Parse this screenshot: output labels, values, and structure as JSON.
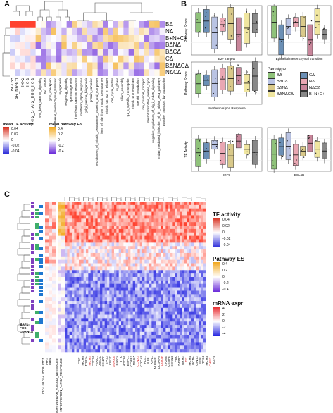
{
  "panels": {
    "a": "A",
    "b": "B",
    "c": "C"
  },
  "panelA": {
    "tf_rows": [
      "BCL6B",
      "AR_NR3C1",
      "IRF2",
      "IRF9",
      "IRF2_STAT2_IRF8_IRF9"
    ],
    "genotype_rows": [
      "BΔ",
      "NΔ",
      "B+N+C+",
      "BΔNΔ",
      "BΔCΔ",
      "CΔ",
      "BΔNΔCΔ",
      "NΔCΔ"
    ],
    "pathways": [
      "wnt_beta_catenin_signaling",
      "e2f_targets",
      "g2m_checkpoint",
      "epithelial_mesenchymal_transition",
      "myogenesis",
      "hedgehog_signaling",
      "spermatogenesis",
      "interferon_gamma_response",
      "interferon_alpha_response",
      "golgi_vesicle_biogenesis",
      "protein_secretion",
      "recruitment_of_mitotic_centrosome_proteins_and_complexes",
      "loss_of_nlp_from_mitotic_centrosomes",
      "mitotic_g2_g2_m_phases",
      "cell_cycle_mitotic",
      "m_phase",
      "cilium_assembly",
      "g1_s_specific_transcription",
      "mitotic_prometaphase",
      "steroid_metabolism",
      "ion_channel_transport",
      "neurotransmitter_release_cycle",
      "negative_regulators_of_rig_i_mda5_signaling",
      "mda5_mediated_induction_of_ifn_alpha_beta_pathways",
      "passive_transport_by_aquaporins"
    ],
    "legend_tf": {
      "title": "mean TF activity",
      "ticks": [
        "0.04",
        "0.02",
        "0",
        "-0.02",
        "-0.04"
      ]
    },
    "legend_es": {
      "title": "mean pathway ES",
      "ticks": [
        "0.4",
        "0.2",
        "0",
        "-0.2",
        "-0.4"
      ]
    }
  },
  "panelB": {
    "plots": [
      {
        "ylabel": "Pathway Score",
        "title": "E2F Targets"
      },
      {
        "ylabel": "",
        "title": "Epithelial mesenchymal transition"
      },
      {
        "ylabel": "Pathway Score",
        "title": "Interferon Alpha Response"
      },
      {
        "ylabel": "TF Activity",
        "title": "IRF9"
      },
      {
        "ylabel": "",
        "title": "BCL6B"
      }
    ],
    "legend_title": "Genotype",
    "legend": [
      {
        "label": "BΔ",
        "color": "#8fc27a"
      },
      {
        "label": "CΔ",
        "color": "#6b8fb5"
      },
      {
        "label": "BΔCΔ",
        "color": "#b9c3e3"
      },
      {
        "label": "NΔ",
        "color": "#e9a7b3"
      },
      {
        "label": "BΔNΔ",
        "color": "#d9c98a"
      },
      {
        "label": "NΔCΔ",
        "color": "#c8859a"
      },
      {
        "label": "BΔNΔCΔ",
        "color": "#f0e6a0"
      },
      {
        "label": "B+N+C+",
        "color": "#888888"
      }
    ]
  },
  "panelC": {
    "left_rows": [
      "BAF1",
      "FOS",
      "CDKN1A"
    ],
    "bottom_left": [
      "IRF2_STAT2_IRF8_IRF9",
      "IRF2",
      "IRF9"
    ],
    "bottom_mid": [
      "INTERFERON_GAMMA_RESPONSE",
      "INTERFERON_ALPHA_RESPONSE"
    ],
    "genes": [
      "CDK1",
      "MCM5",
      "TOP2A",
      "MCM2",
      "CDC20",
      "PSRC1",
      "UBE2C",
      "CENPF",
      "TPX2",
      "KIF2C",
      "AURKA",
      "BIRC5",
      "TTK",
      "NDC80",
      "ESPL1",
      "CCNB2",
      "MKI67",
      "CCNA2",
      "CDCA8",
      "PLK1",
      "BUB1",
      "KIF11",
      "NUSAP1",
      "DLGAP5",
      "HMMR",
      "KIF20A",
      "CENPE",
      "CDKN3",
      "PBK",
      "ZWINT",
      "RRM2",
      "TK1",
      "MCM4",
      "PCNA",
      "GINS2",
      "FEN1",
      "RFC4",
      "MCM3",
      "CHEK1",
      "E2F8"
    ],
    "gene_label_colors": [
      "#222",
      "#d33"
    ],
    "legend_tf": {
      "title": "TF activity",
      "ticks": [
        "0.04",
        "0.02",
        "0",
        "-0.02",
        "-0.04"
      ]
    },
    "legend_es": {
      "title": "Pathway ES",
      "ticks": [
        "0.4",
        "0.2",
        "0",
        "-0.2",
        "-0.4"
      ]
    },
    "legend_mrna": {
      "title": "mRNA expr",
      "ticks": [
        "4",
        "2",
        "0",
        "-2",
        "-4"
      ]
    }
  }
}
